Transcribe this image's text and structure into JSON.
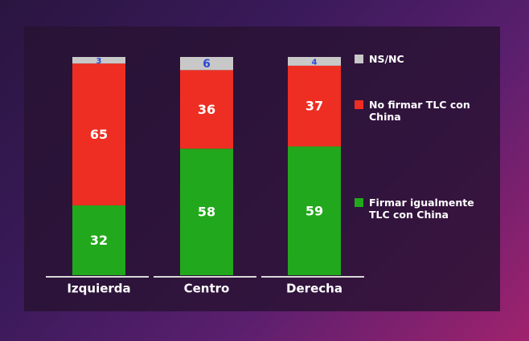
{
  "chart_data": {
    "type": "stacked-bar",
    "categories": [
      "Izquierda",
      "Centro",
      "Derecha"
    ],
    "series": [
      {
        "name": "Firmar igualmente TLC con China",
        "color": "#22a81c",
        "values": [
          32,
          58,
          59
        ]
      },
      {
        "name": "No firmar TLC con China",
        "color": "#ee2e22",
        "values": [
          65,
          36,
          37
        ]
      },
      {
        "name": "NS/NC",
        "color": "#c8c8c8",
        "values": [
          3,
          6,
          4
        ]
      }
    ]
  }
}
